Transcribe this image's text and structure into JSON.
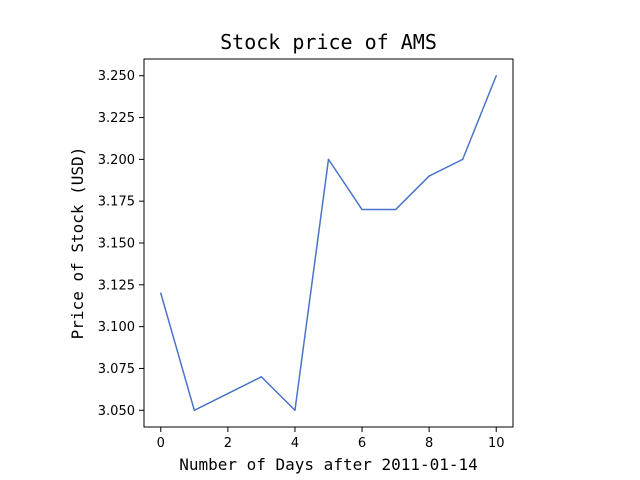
{
  "chart_data": {
    "type": "line",
    "title": "Stock price of AMS",
    "xlabel": "Number of Days after 2011-01-14",
    "ylabel": "Price of Stock (USD)",
    "x": [
      0,
      1,
      2,
      3,
      4,
      5,
      6,
      7,
      8,
      9,
      10
    ],
    "series": [
      {
        "values": [
          3.12,
          3.05,
          3.06,
          3.07,
          3.05,
          3.2,
          3.17,
          3.17,
          3.19,
          3.2,
          3.25
        ]
      }
    ],
    "xlim": [
      -0.5,
      10.5
    ],
    "ylim": [
      3.04,
      3.26
    ],
    "xticks": [
      0,
      2,
      4,
      6,
      8,
      10
    ],
    "xtick_labels": [
      "0",
      "2",
      "4",
      "6",
      "8",
      "10"
    ],
    "yticks": [
      3.05,
      3.075,
      3.1,
      3.125,
      3.15,
      3.175,
      3.2,
      3.225,
      3.25
    ],
    "ytick_labels": [
      "3.050",
      "3.075",
      "3.100",
      "3.125",
      "3.150",
      "3.175",
      "3.200",
      "3.225",
      "3.250"
    ],
    "grid": false,
    "line_color": "#4a74c9"
  }
}
